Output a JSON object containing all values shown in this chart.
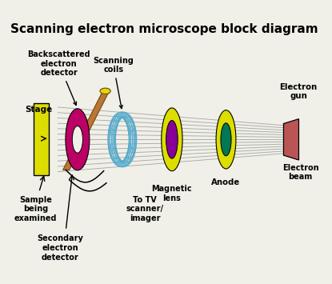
{
  "title": "Scanning electron microscope block diagram",
  "title_fontsize": 11,
  "bg_color": "#f0f0e8",
  "labels": {
    "stage": "Stage",
    "backscattered": "Backscattered\nelectron\ndetector",
    "scanning_coils": "Scanning\ncoils",
    "magnetic_lens": "Magnetic\nlens",
    "anode": "Anode",
    "electron_gun": "Electron\ngun",
    "electron_beam": "Electron\nbeam",
    "sample": "Sample\nbeing\nexamined",
    "secondary": "Secondary\nelectron\ndetector",
    "tv_scanner": "To TV\nscanner/\nimager"
  },
  "colors": {
    "stage_yellow": "#dddd00",
    "bsd_magenta": "#bb0066",
    "coil_blue": "#55aacc",
    "ml_yellow": "#dddd00",
    "ml_purple": "#880099",
    "anode_yellow": "#dddd00",
    "anode_green": "#007755",
    "gun_red": "#bb5555",
    "beam_gray": "#aaaaaa",
    "det_brown": "#bb7733",
    "det_yellow": "#dddd00",
    "black": "#000000",
    "white": "#ffffff"
  }
}
